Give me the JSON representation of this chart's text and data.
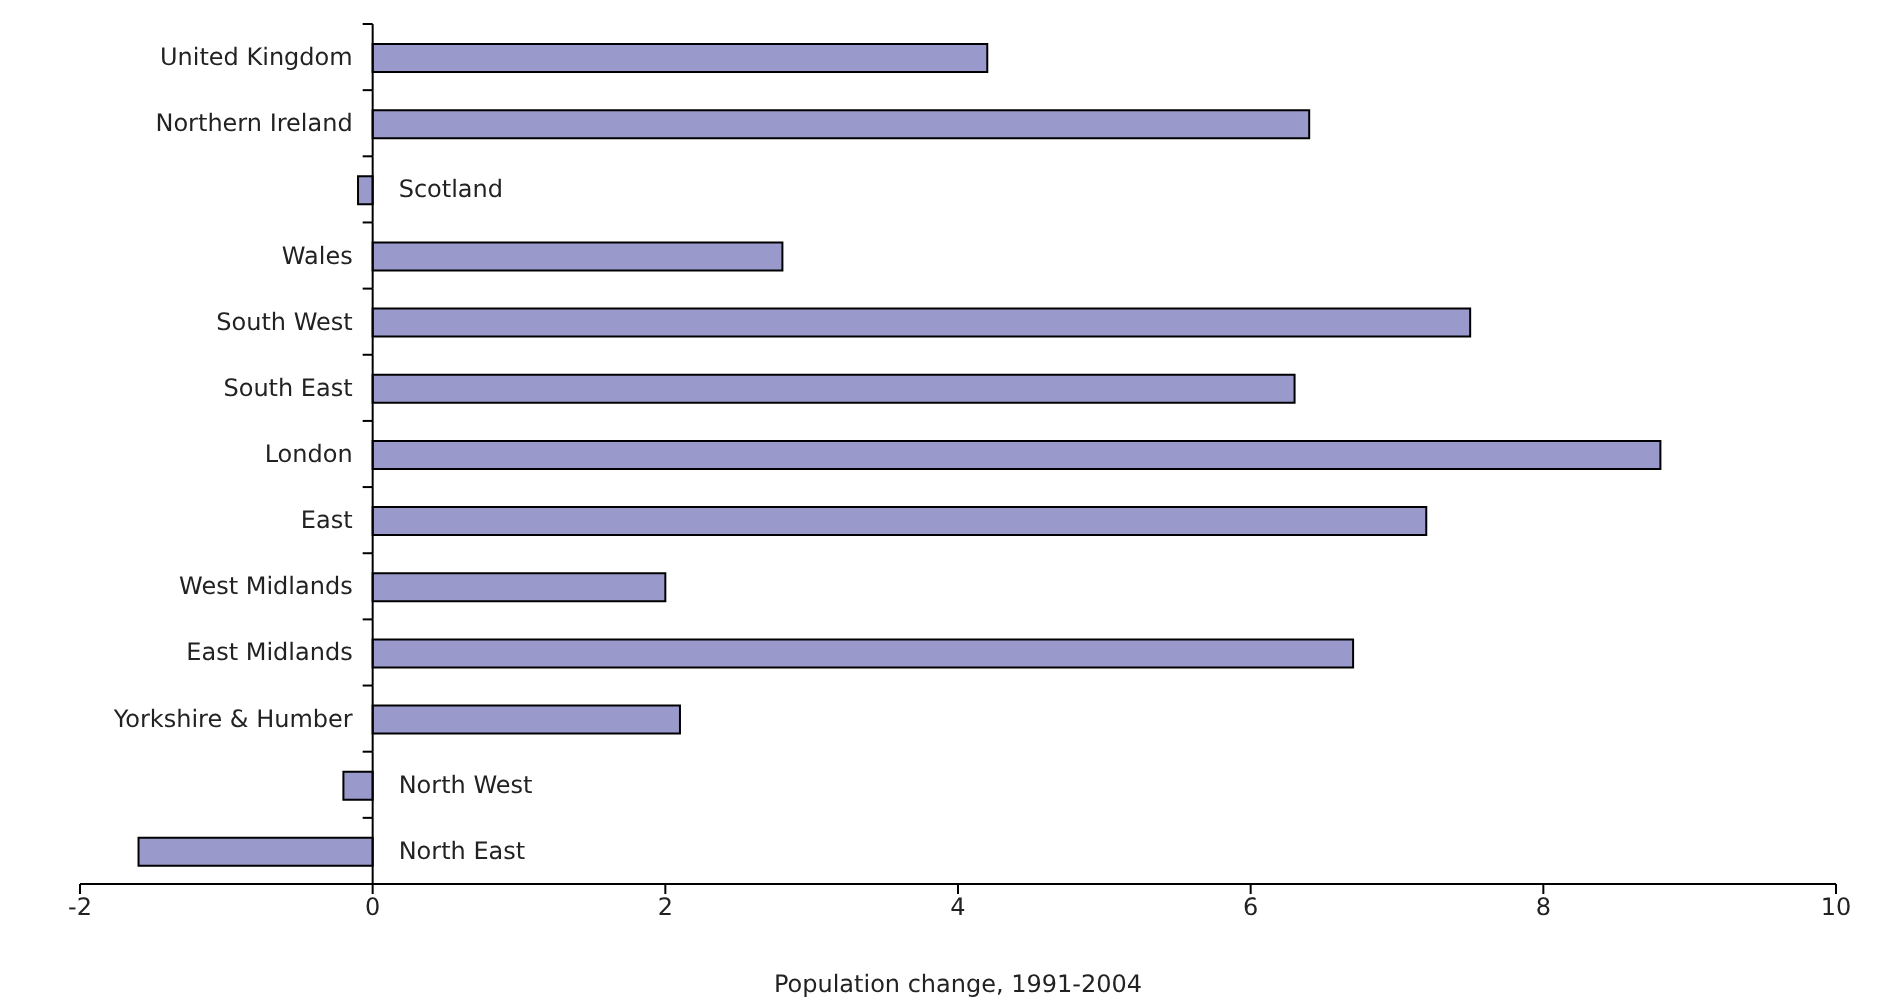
{
  "chart_data": {
    "type": "bar",
    "orientation": "horizontal",
    "xlabel": "Population change, 1991-2004",
    "categories": [
      "United Kingdom",
      "Northern Ireland",
      "Scotland",
      "Wales",
      "South West",
      "South East",
      "London",
      "East",
      "West Midlands",
      "East Midlands",
      "Yorkshire & Humber",
      "North West",
      "North East"
    ],
    "values": [
      4.2,
      6.4,
      -0.1,
      2.8,
      7.5,
      6.3,
      8.8,
      7.2,
      2.0,
      6.7,
      2.1,
      -0.2,
      -1.6
    ],
    "color": "#9999cc",
    "xlim": [
      -2,
      10
    ],
    "xticks": [
      -2,
      0,
      2,
      4,
      6,
      8,
      10
    ]
  }
}
